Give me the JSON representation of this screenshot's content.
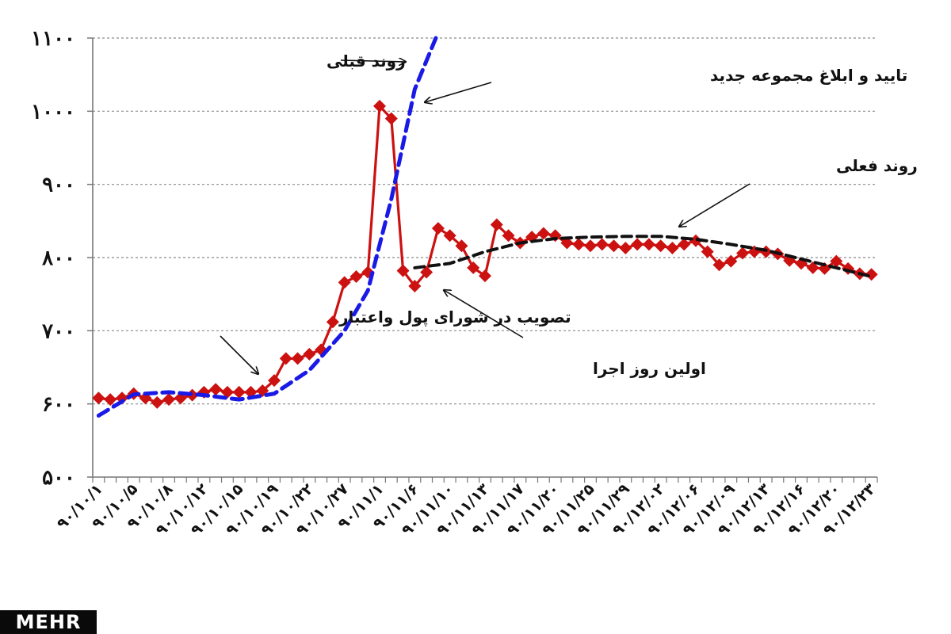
{
  "chart_data": {
    "type": "line",
    "y_ticks": [
      "۵۰۰",
      "۶۰۰",
      "۷۰۰",
      "۸۰۰",
      "۹۰۰",
      "۱۰۰۰",
      "۱۱۰۰"
    ],
    "y_tick_values": [
      500,
      600,
      700,
      800,
      900,
      1000,
      1100
    ],
    "ylim": [
      500,
      1100
    ],
    "grid": true,
    "x_tick_labels": [
      "۹۰/۱۰/۱",
      "۹۰/۱۰/۵",
      "۹۰/۱۰/۸",
      "۹۰/۱۰/۱۲",
      "۹۰/۱۰/۱۵",
      "۹۰/۱۰/۱۹",
      "۹۰/۱۰/۲۲",
      "۹۰/۱۰/۲۷",
      "۹۰/۱۱/۱",
      "۹۰/۱۱/۶",
      "۹۰/۱۱/۱۰",
      "۹۰/۱۱/۱۳",
      "۹۰/۱۱/۱۷",
      "۹۰/۱۱/۲۰",
      "۹۰/۱۱/۲۵",
      "۹۰/۱۱/۲۹",
      "۹۰/۱۲/۰۲",
      "۹۰/۱۲/۰۶",
      "۹۰/۱۲/۰۹",
      "۹۰/۱۲/۱۳",
      "۹۰/۱۲/۱۶",
      "۹۰/۱۲/۲۰",
      "۹۰/۱۲/۲۳"
    ],
    "x_tick_index": [
      0,
      3,
      6,
      9,
      12,
      15,
      18,
      21,
      24,
      27,
      30,
      33,
      36,
      39,
      42,
      45,
      48,
      51,
      54,
      57,
      60,
      63,
      66
    ],
    "n_points": 67,
    "series": [
      {
        "color": "#cc1111",
        "style": "solid-diamond",
        "values": [
          608,
          606,
          608,
          614,
          608,
          602,
          606,
          608,
          612,
          616,
          620,
          616,
          616,
          616,
          618,
          632,
          662,
          662,
          668,
          674,
          712,
          766,
          774,
          780,
          1007,
          990,
          782,
          761,
          780,
          840,
          830,
          816,
          786,
          775,
          845,
          830,
          820,
          828,
          833,
          830,
          820,
          818,
          816,
          818,
          816,
          813,
          818,
          818,
          816,
          813,
          818,
          823,
          808,
          790,
          795,
          806,
          808,
          808,
          805,
          796,
          792,
          786,
          785,
          795,
          785,
          778,
          777
        ]
      },
      {
        "color": "#1a1ae6",
        "style": "dashed",
        "x_range": [
          0,
          28
        ],
        "fit": "piecewise"
      },
      {
        "color": "#111111",
        "style": "dashed",
        "x_range": [
          27,
          66
        ],
        "fit": "smooth"
      }
    ],
    "annotations": [
      {
        "text": "روند قبلی",
        "target_series": 1
      },
      {
        "text": "تایید و ابلاغ مجموعه جدید",
        "target_series": 1
      },
      {
        "text": "روند فعلی",
        "target_series": 2
      },
      {
        "text": "تصویب در شورای پول واعتبار",
        "target_series": 0
      },
      {
        "text": "اولین روز اجرا",
        "target_series": 0
      }
    ]
  },
  "logo": {
    "text": "MEHR"
  }
}
